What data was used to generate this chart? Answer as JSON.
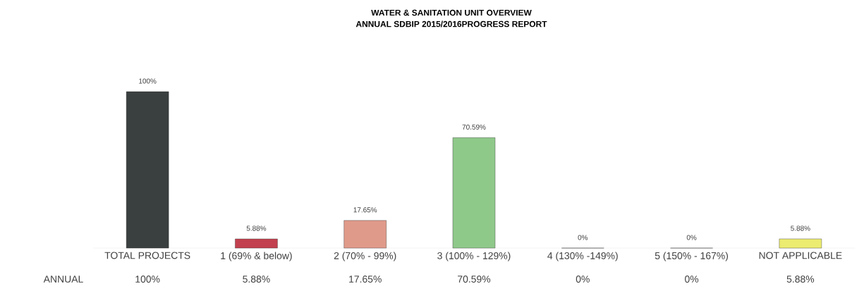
{
  "chart_data": {
    "type": "bar",
    "title": "WATER & SANITATION UNIT OVERVIEW",
    "subtitle": "ANNUAL SDBIP 2015/2016PROGRESS REPORT",
    "categories": [
      "TOTAL PROJECTS",
      "1 (69% & below)",
      "2 (70% - 99%)",
      "3 (100% - 129%)",
      "4 (130% -149%)",
      "5 (150% - 167%)",
      "NOT APPLICABLE"
    ],
    "series": [
      {
        "name": "ANNUAL",
        "values": [
          100,
          5.88,
          17.65,
          70.59,
          0,
          0,
          5.88
        ],
        "colors": [
          "#3a3f3f",
          "#c2404f",
          "#e09a8a",
          "#8fc98a",
          "#8fc98a",
          "#8fc98a",
          "#ecec70"
        ],
        "value_labels": [
          "100%",
          "5.88%",
          "17.65%",
          "70.59%",
          "0%",
          "0%",
          "5.88%"
        ]
      }
    ]
  }
}
